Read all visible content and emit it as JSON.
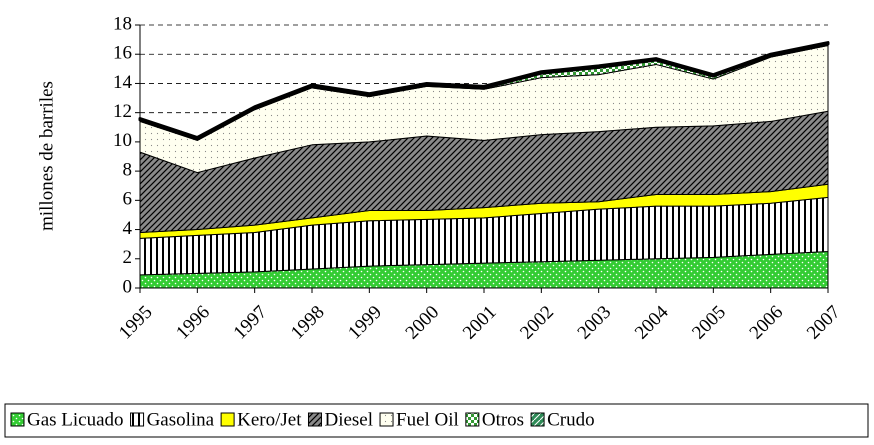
{
  "chart_data": {
    "type": "stacked_area",
    "y_label": "millones de barriles",
    "categories": [
      "1995",
      "1996",
      "1997",
      "1998",
      "1999",
      "2000",
      "2001",
      "2002",
      "2003",
      "2004",
      "2005",
      "2006",
      "2007"
    ],
    "series": [
      {
        "name": "Gas Licuado",
        "color": "#33cc33",
        "values": [
          0.9,
          1.0,
          1.1,
          1.3,
          1.5,
          1.6,
          1.7,
          1.8,
          1.9,
          2.0,
          2.1,
          2.3,
          2.5
        ]
      },
      {
        "name": "Gasolina",
        "color": "#ffffff",
        "values": [
          2.5,
          2.6,
          2.7,
          3.0,
          3.1,
          3.1,
          3.1,
          3.3,
          3.5,
          3.6,
          3.5,
          3.5,
          3.7
        ]
      },
      {
        "name": "Kero/Jet",
        "color": "#ffff00",
        "values": [
          0.4,
          0.4,
          0.5,
          0.5,
          0.7,
          0.6,
          0.7,
          0.7,
          0.5,
          0.8,
          0.8,
          0.8,
          0.9
        ]
      },
      {
        "name": "Diesel",
        "color": "#8a8a8a",
        "values": [
          5.5,
          3.9,
          4.6,
          5.0,
          4.7,
          5.1,
          4.6,
          4.7,
          4.8,
          4.6,
          4.7,
          4.8,
          5.0
        ]
      },
      {
        "name": "Fuel Oil",
        "color": "#fffff0",
        "values": [
          2.1,
          2.2,
          3.3,
          3.9,
          3.1,
          3.4,
          3.5,
          3.9,
          3.9,
          4.3,
          3.2,
          4.4,
          4.5
        ]
      },
      {
        "name": "Otros",
        "color": "#339933",
        "values": [
          0.1,
          0.1,
          0.1,
          0.1,
          0.1,
          0.1,
          0.1,
          0.3,
          0.5,
          0.3,
          0.2,
          0.1,
          0.1
        ]
      },
      {
        "name": "Crudo",
        "color": "#2e8b57",
        "values": [
          0.1,
          0.1,
          0.1,
          0.1,
          0.1,
          0.1,
          0.1,
          0.1,
          0.1,
          0.1,
          0.1,
          0.1,
          0.1
        ]
      }
    ],
    "ylim": [
      0,
      18
    ],
    "yticks": [
      0,
      2,
      4,
      6,
      8,
      10,
      12,
      14,
      16,
      18
    ],
    "grid": true,
    "legend": "bottom"
  }
}
